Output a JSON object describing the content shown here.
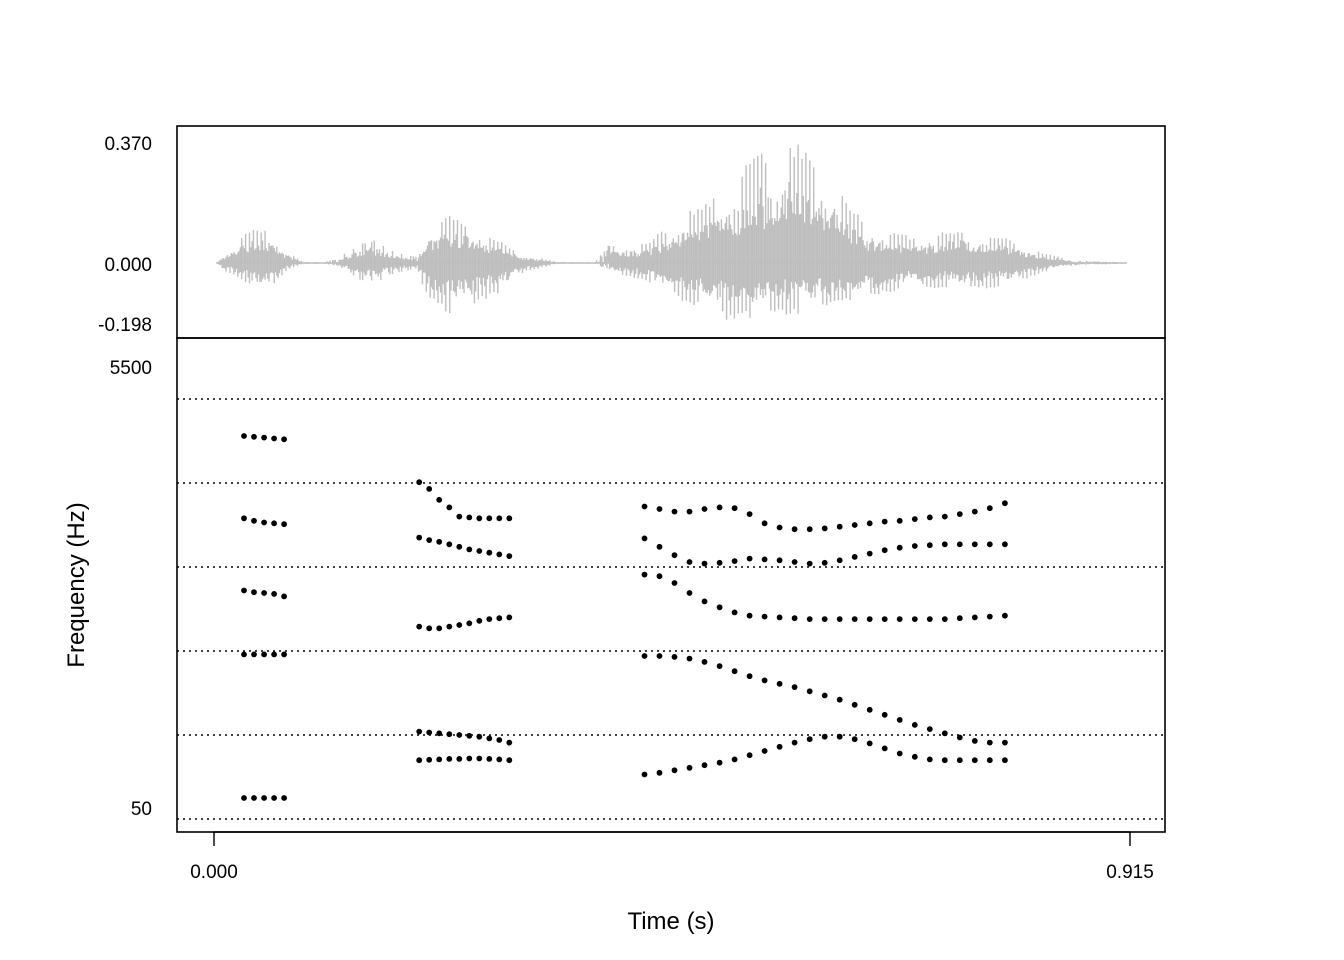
{
  "chart_data": [
    {
      "type": "line",
      "panel": "waveform",
      "title": "",
      "xlabel": "",
      "ylabel": "",
      "xlim": [
        0.0,
        0.915
      ],
      "ylim": [
        -0.198,
        0.37
      ],
      "y_tick_labels": [
        "0.370",
        "0.000",
        "-0.198"
      ],
      "y_ticks": [
        0.37,
        0.0,
        -0.198
      ],
      "series_color": "#bebebe",
      "segments": [
        {
          "start": 0.003,
          "end": 0.088,
          "peak_pos": 0.028,
          "peak_neg": -0.017,
          "period": 0.004
        },
        {
          "start": 0.124,
          "end": 0.2,
          "peak_pos": 0.012,
          "peak_neg": -0.013,
          "period": 0.003
        },
        {
          "start": 0.203,
          "end": 0.342,
          "peak_pos": 0.024,
          "peak_neg": -0.03,
          "period": 0.004
        },
        {
          "start": 0.395,
          "end": 0.86,
          "peak_pos": 0.038,
          "peak_neg": -0.035,
          "period": 0.004
        }
      ],
      "envelope": [
        {
          "t": 0.003,
          "max": 0.004,
          "min": -0.004
        },
        {
          "t": 0.01,
          "max": 0.03,
          "min": -0.025
        },
        {
          "t": 0.03,
          "max": 0.09,
          "min": -0.06
        },
        {
          "t": 0.045,
          "max": 0.115,
          "min": -0.105
        },
        {
          "t": 0.06,
          "max": 0.085,
          "min": -0.07
        },
        {
          "t": 0.075,
          "max": 0.035,
          "min": -0.02
        },
        {
          "t": 0.088,
          "max": 0.005,
          "min": -0.004
        },
        {
          "t": 0.11,
          "max": 0.002,
          "min": -0.002
        },
        {
          "t": 0.124,
          "max": 0.015,
          "min": -0.01
        },
        {
          "t": 0.145,
          "max": 0.06,
          "min": -0.055
        },
        {
          "t": 0.16,
          "max": 0.075,
          "min": -0.07
        },
        {
          "t": 0.18,
          "max": 0.035,
          "min": -0.035
        },
        {
          "t": 0.2,
          "max": 0.02,
          "min": -0.02
        },
        {
          "t": 0.215,
          "max": 0.11,
          "min": -0.12
        },
        {
          "t": 0.235,
          "max": 0.15,
          "min": -0.17
        },
        {
          "t": 0.26,
          "max": 0.12,
          "min": -0.14
        },
        {
          "t": 0.29,
          "max": 0.06,
          "min": -0.09
        },
        {
          "t": 0.31,
          "max": 0.03,
          "min": -0.03
        },
        {
          "t": 0.342,
          "max": 0.004,
          "min": -0.004
        },
        {
          "t": 0.38,
          "max": 0.002,
          "min": -0.002
        },
        {
          "t": 0.395,
          "max": 0.06,
          "min": -0.03
        },
        {
          "t": 0.43,
          "max": 0.06,
          "min": -0.06
        },
        {
          "t": 0.47,
          "max": 0.15,
          "min": -0.13
        },
        {
          "t": 0.51,
          "max": 0.23,
          "min": -0.19
        },
        {
          "t": 0.54,
          "max": 0.33,
          "min": -0.18
        },
        {
          "t": 0.58,
          "max": 0.38,
          "min": -0.17
        },
        {
          "t": 0.61,
          "max": 0.3,
          "min": -0.15
        },
        {
          "t": 0.65,
          "max": 0.12,
          "min": -0.12
        },
        {
          "t": 0.7,
          "max": 0.08,
          "min": -0.08
        },
        {
          "t": 0.75,
          "max": 0.11,
          "min": -0.09
        },
        {
          "t": 0.79,
          "max": 0.08,
          "min": -0.08
        },
        {
          "t": 0.83,
          "max": 0.03,
          "min": -0.03
        },
        {
          "t": 0.86,
          "max": 0.008,
          "min": -0.008
        },
        {
          "t": 0.912,
          "max": 0.002,
          "min": -0.002
        }
      ]
    },
    {
      "type": "scatter",
      "panel": "formants",
      "title": "",
      "xlabel": "Time (s)",
      "ylabel": "Frequency (Hz)",
      "xlim": [
        0.0,
        0.915
      ],
      "ylim": [
        50,
        5500
      ],
      "y_tick_labels": [
        "5500",
        "50"
      ],
      "y_ticks": [
        5500,
        50
      ],
      "x_tick_labels": [
        "0.000",
        "0.915"
      ],
      "x_ticks": [
        0.0,
        0.915
      ],
      "gridlines_hz": [
        0,
        1000,
        2000,
        3000,
        4000,
        5000
      ],
      "marker_color": "#000000",
      "series": [
        {
          "name": "",
          "x": [
            0.03,
            0.04,
            0.05,
            0.06,
            0.07
          ],
          "y": [
            250,
            250,
            250,
            250,
            250
          ]
        },
        {
          "name": "",
          "x": [
            0.03,
            0.04,
            0.05,
            0.06,
            0.07
          ],
          "y": [
            1960,
            1960,
            1960,
            1960,
            1960
          ]
        },
        {
          "name": "",
          "x": [
            0.03,
            0.04,
            0.05,
            0.06,
            0.07
          ],
          "y": [
            2720,
            2700,
            2690,
            2680,
            2650
          ]
        },
        {
          "name": "",
          "x": [
            0.03,
            0.04,
            0.05,
            0.06,
            0.07
          ],
          "y": [
            3580,
            3550,
            3530,
            3520,
            3510
          ]
        },
        {
          "name": "",
          "x": [
            0.03,
            0.04,
            0.05,
            0.06,
            0.07
          ],
          "y": [
            4560,
            4550,
            4540,
            4530,
            4520
          ]
        },
        {
          "name": "",
          "x": [
            0.205,
            0.215,
            0.225,
            0.235,
            0.245,
            0.255,
            0.265,
            0.275,
            0.285,
            0.295
          ],
          "y": [
            700,
            705,
            710,
            715,
            715,
            720,
            720,
            715,
            710,
            700
          ]
        },
        {
          "name": "",
          "x": [
            0.205,
            0.215,
            0.225,
            0.235,
            0.245,
            0.255,
            0.265,
            0.275,
            0.285,
            0.295
          ],
          "y": [
            1040,
            1030,
            1020,
            1010,
            1000,
            990,
            980,
            960,
            940,
            910
          ]
        },
        {
          "name": "",
          "x": [
            0.205,
            0.215,
            0.225,
            0.235,
            0.245,
            0.255,
            0.265,
            0.275,
            0.285,
            0.295
          ],
          "y": [
            2290,
            2270,
            2270,
            2290,
            2310,
            2330,
            2360,
            2380,
            2390,
            2400
          ]
        },
        {
          "name": "",
          "x": [
            0.205,
            0.215,
            0.225,
            0.235,
            0.245,
            0.255,
            0.265,
            0.275,
            0.285,
            0.295
          ],
          "y": [
            3350,
            3320,
            3300,
            3270,
            3240,
            3210,
            3190,
            3170,
            3150,
            3130
          ]
        },
        {
          "name": "",
          "x": [
            0.205,
            0.215,
            0.225,
            0.235,
            0.245,
            0.255,
            0.265,
            0.275,
            0.285,
            0.295
          ],
          "y": [
            4010,
            3930,
            3800,
            3710,
            3600,
            3590,
            3580,
            3580,
            3580,
            3580
          ]
        },
        {
          "name": "",
          "x": [
            0.43,
            0.445,
            0.46,
            0.475,
            0.49,
            0.505,
            0.52,
            0.535,
            0.55,
            0.565,
            0.58,
            0.595,
            0.61,
            0.625,
            0.64,
            0.655,
            0.67,
            0.685,
            0.7,
            0.715,
            0.73,
            0.745,
            0.76,
            0.775,
            0.79
          ],
          "y": [
            530,
            550,
            580,
            610,
            640,
            670,
            710,
            760,
            810,
            860,
            910,
            950,
            980,
            980,
            950,
            900,
            840,
            780,
            740,
            710,
            700,
            700,
            700,
            700,
            700
          ]
        },
        {
          "name": "",
          "x": [
            0.43,
            0.445,
            0.46,
            0.475,
            0.49,
            0.505,
            0.52,
            0.535,
            0.55,
            0.565,
            0.58,
            0.595,
            0.61,
            0.625,
            0.64,
            0.655,
            0.67,
            0.685,
            0.7,
            0.715,
            0.73,
            0.745,
            0.76,
            0.775,
            0.79
          ],
          "y": [
            1940,
            1940,
            1930,
            1910,
            1870,
            1820,
            1760,
            1700,
            1650,
            1610,
            1570,
            1520,
            1470,
            1420,
            1360,
            1300,
            1240,
            1180,
            1120,
            1070,
            1020,
            970,
            930,
            910,
            910
          ]
        },
        {
          "name": "",
          "x": [
            0.43,
            0.445,
            0.46,
            0.475,
            0.49,
            0.505,
            0.52,
            0.535,
            0.55,
            0.565,
            0.58,
            0.595,
            0.61,
            0.625,
            0.64,
            0.655,
            0.67,
            0.685,
            0.7,
            0.715,
            0.73,
            0.745,
            0.76,
            0.775,
            0.79
          ],
          "y": [
            2910,
            2890,
            2810,
            2690,
            2590,
            2520,
            2460,
            2420,
            2410,
            2400,
            2390,
            2380,
            2380,
            2380,
            2380,
            2380,
            2380,
            2380,
            2380,
            2380,
            2380,
            2390,
            2400,
            2410,
            2420
          ]
        },
        {
          "name": "",
          "x": [
            0.43,
            0.445,
            0.46,
            0.475,
            0.49,
            0.505,
            0.52,
            0.535,
            0.55,
            0.565,
            0.58,
            0.595,
            0.61,
            0.625,
            0.64,
            0.655,
            0.67,
            0.685,
            0.7,
            0.715,
            0.73,
            0.745,
            0.76,
            0.775,
            0.79
          ],
          "y": [
            3340,
            3240,
            3140,
            3060,
            3040,
            3050,
            3070,
            3100,
            3090,
            3080,
            3060,
            3040,
            3050,
            3080,
            3120,
            3160,
            3200,
            3230,
            3250,
            3260,
            3270,
            3270,
            3270,
            3270,
            3270
          ]
        },
        {
          "name": "",
          "x": [
            0.43,
            0.445,
            0.46,
            0.475,
            0.49,
            0.505,
            0.52,
            0.535,
            0.55,
            0.565,
            0.58,
            0.595,
            0.61,
            0.625,
            0.64,
            0.655,
            0.67,
            0.685,
            0.7,
            0.715,
            0.73,
            0.745,
            0.76,
            0.775,
            0.79
          ],
          "y": [
            3720,
            3690,
            3660,
            3660,
            3690,
            3710,
            3700,
            3630,
            3520,
            3470,
            3450,
            3450,
            3460,
            3480,
            3500,
            3520,
            3540,
            3550,
            3570,
            3590,
            3600,
            3630,
            3660,
            3700,
            3760
          ]
        }
      ]
    }
  ]
}
